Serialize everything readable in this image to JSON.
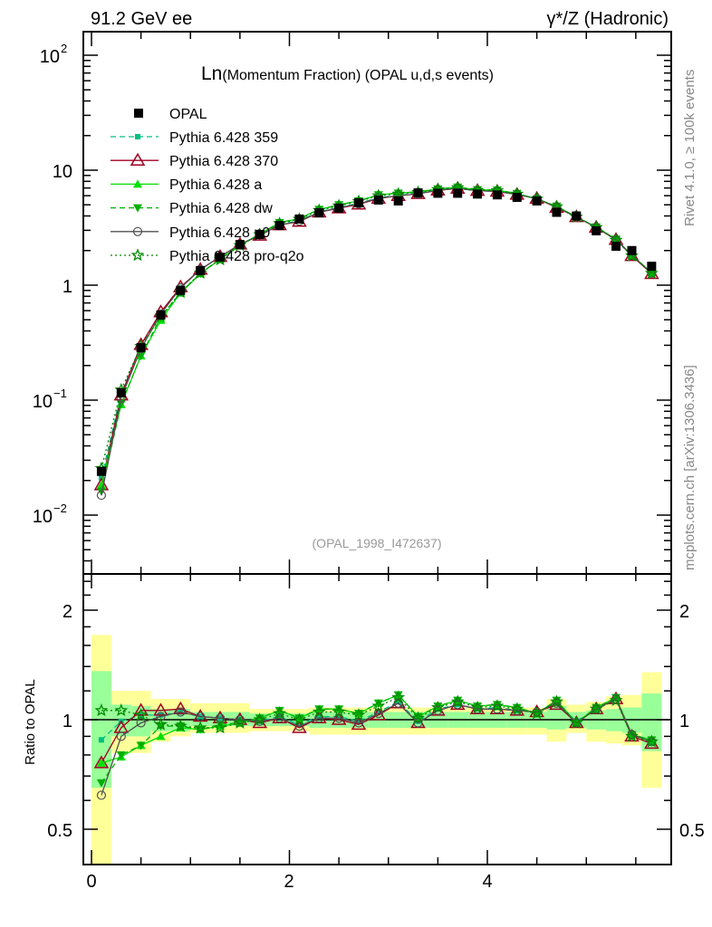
{
  "header": {
    "energy": "91.2 GeV ee",
    "process": "γ*/Z (Hadronic)"
  },
  "title": {
    "main": "Ln",
    "rest": "(Momentum Fraction) (OPAL u,d,s events)"
  },
  "analysis_id": "(OPAL_1998_I472637)",
  "side_labels": {
    "rivet": "Rivet 4.1.0, ≥ 100k events",
    "mcplots": "mcplots.cern.ch [arXiv:1306.3436]"
  },
  "chart_data": {
    "type": "line",
    "xlabel": "",
    "xlim": [
      -0.08,
      5.86
    ],
    "x_ticks": [
      "0",
      "2",
      "4"
    ],
    "upper": {
      "yscale": "log",
      "ylim": [
        0.0032,
        160
      ],
      "y_ticks": [
        {
          "base": "10",
          "exp": "2"
        },
        {
          "base": "10",
          "exp": ""
        },
        {
          "base": "1",
          "exp": ""
        },
        {
          "base": "10",
          "exp": "−1"
        },
        {
          "base": "10",
          "exp": "−2"
        }
      ]
    },
    "lower": {
      "ylabel": "Ratio to OPAL",
      "yscale": "log",
      "ylim": [
        0.4,
        2.49
      ],
      "y_ticks": [
        "2",
        "1",
        "0.5"
      ]
    },
    "x": [
      0.1,
      0.3,
      0.5,
      0.7,
      0.9,
      1.1,
      1.3,
      1.5,
      1.7,
      1.9,
      2.1,
      2.3,
      2.5,
      2.7,
      2.9,
      3.1,
      3.3,
      3.5,
      3.7,
      3.9,
      4.1,
      4.3,
      4.5,
      4.7,
      4.9,
      5.1,
      5.3,
      5.46,
      5.66
    ],
    "reference": {
      "name": "OPAL",
      "values": [
        0.024,
        0.116,
        0.286,
        0.55,
        0.9,
        1.34,
        1.75,
        2.26,
        2.76,
        3.3,
        3.76,
        4.26,
        4.67,
        5.2,
        5.5,
        5.4,
        6.35,
        6.3,
        6.3,
        6.2,
        6.1,
        5.8,
        5.4,
        4.3,
        4.0,
        2.97,
        2.18,
        2.0,
        1.46
      ],
      "band_total_lo": [
        0.35,
        0.81,
        0.81,
        0.87,
        0.9,
        0.92,
        0.92,
        0.92,
        0.93,
        0.93,
        0.93,
        0.91,
        0.91,
        0.91,
        0.91,
        0.91,
        0.91,
        0.91,
        0.91,
        0.91,
        0.91,
        0.91,
        0.91,
        0.87,
        0.92,
        0.87,
        0.86,
        0.85,
        0.65
      ],
      "band_total_hi": [
        1.71,
        1.2,
        1.2,
        1.14,
        1.14,
        1.11,
        1.11,
        1.11,
        1.07,
        1.07,
        1.07,
        1.08,
        1.08,
        1.08,
        1.08,
        1.08,
        1.08,
        1.08,
        1.08,
        1.08,
        1.08,
        1.08,
        1.08,
        1.14,
        1.1,
        1.12,
        1.16,
        1.17,
        1.35
      ],
      "band_stat_lo": [
        0.65,
        0.9,
        0.9,
        0.93,
        0.93,
        0.96,
        0.96,
        0.96,
        0.96,
        0.96,
        0.96,
        0.95,
        0.95,
        0.95,
        0.95,
        0.95,
        0.95,
        0.95,
        0.95,
        0.95,
        0.95,
        0.95,
        0.95,
        0.94,
        0.95,
        0.94,
        0.93,
        0.92,
        0.82
      ],
      "band_stat_hi": [
        1.36,
        1.1,
        1.09,
        1.07,
        1.07,
        1.05,
        1.05,
        1.05,
        1.04,
        1.04,
        1.04,
        1.05,
        1.05,
        1.05,
        1.05,
        1.05,
        1.05,
        1.05,
        1.05,
        1.05,
        1.05,
        1.05,
        1.05,
        1.09,
        1.05,
        1.06,
        1.07,
        1.08,
        1.18
      ],
      "color": "#000000"
    },
    "series": [
      {
        "name": "Pythia 6.428 359",
        "color": "#00c080",
        "dash": "6,4",
        "marker": "square-small",
        "ratio": [
          0.88,
          0.99,
          1.03,
          1.03,
          1.05,
          1.02,
          1.01,
          1.0,
          0.99,
          1.02,
          0.97,
          1.02,
          1.02,
          0.99,
          1.05,
          1.12,
          0.99,
          1.07,
          1.1,
          1.07,
          1.08,
          1.06,
          1.05,
          1.11,
          0.99,
          1.07,
          1.14,
          0.91,
          0.87
        ]
      },
      {
        "name": "Pythia 6.428 370",
        "color": "#a00020",
        "dash": "",
        "marker": "triangle-open",
        "ratio": [
          0.76,
          0.95,
          1.06,
          1.06,
          1.07,
          1.02,
          1.01,
          1.0,
          0.98,
          1.01,
          0.95,
          1.01,
          1.0,
          0.97,
          1.03,
          1.11,
          0.98,
          1.06,
          1.1,
          1.07,
          1.07,
          1.06,
          1.05,
          1.1,
          0.98,
          1.07,
          1.14,
          0.9,
          0.86
        ]
      },
      {
        "name": "Pythia 6.428 a",
        "color": "#00e000",
        "dash": "",
        "marker": "triangle-up",
        "ratio": [
          0.76,
          0.79,
          0.85,
          0.9,
          0.95,
          0.94,
          0.96,
          0.98,
          1.01,
          1.06,
          1.01,
          1.07,
          1.07,
          1.04,
          1.11,
          1.17,
          1.02,
          1.09,
          1.13,
          1.09,
          1.1,
          1.08,
          1.04,
          1.13,
          0.98,
          1.08,
          1.15,
          0.91,
          0.88
        ]
      },
      {
        "name": "Pythia 6.428 dw",
        "color": "#00b000",
        "dash": "6,4",
        "marker": "triangle-down",
        "ratio": [
          0.67,
          0.8,
          0.85,
          0.96,
          0.96,
          0.94,
          0.97,
          0.98,
          1.01,
          1.06,
          1.01,
          1.07,
          1.07,
          1.04,
          1.11,
          1.17,
          1.02,
          1.09,
          1.13,
          1.09,
          1.1,
          1.08,
          1.04,
          1.13,
          0.98,
          1.08,
          1.15,
          0.91,
          0.88
        ]
      },
      {
        "name": "Pythia 6.428 p0",
        "color": "#505050",
        "dash": "",
        "marker": "circle-open",
        "ratio": [
          0.62,
          0.9,
          0.98,
          1.02,
          1.05,
          1.02,
          1.01,
          1.0,
          0.99,
          1.01,
          0.96,
          1.01,
          1.01,
          0.98,
          1.04,
          1.11,
          0.98,
          1.06,
          1.1,
          1.07,
          1.07,
          1.06,
          1.05,
          1.11,
          0.98,
          1.07,
          1.14,
          0.91,
          0.87
        ]
      },
      {
        "name": "Pythia 6.428 pro-q2o",
        "color": "#008a00",
        "dash": "2,3",
        "marker": "star-open",
        "ratio": [
          1.06,
          1.06,
          1.03,
          0.97,
          0.96,
          0.95,
          0.95,
          0.98,
          1.0,
          1.04,
          1.0,
          1.05,
          1.05,
          1.03,
          1.09,
          1.15,
          1.01,
          1.08,
          1.12,
          1.08,
          1.09,
          1.07,
          1.04,
          1.12,
          0.98,
          1.07,
          1.13,
          0.9,
          0.87
        ]
      }
    ],
    "band_colors": {
      "total": "#ffff99",
      "stat": "#99ff99"
    },
    "legend_position": "top-left"
  }
}
